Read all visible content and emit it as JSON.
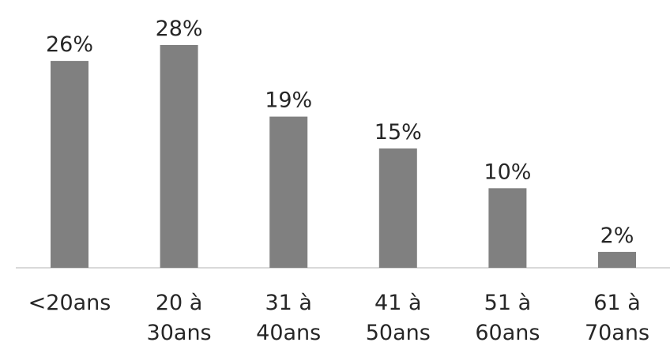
{
  "chart_data": {
    "type": "bar",
    "categories": [
      [
        "<20ans"
      ],
      [
        "20 à",
        "30ans"
      ],
      [
        "31 à",
        "40ans"
      ],
      [
        "41 à",
        "50ans"
      ],
      [
        "51 à",
        "60ans"
      ],
      [
        "61 à",
        "70ans"
      ]
    ],
    "values": [
      26,
      28,
      19,
      15,
      10,
      2
    ],
    "data_labels": [
      "26%",
      "28%",
      "19%",
      "15%",
      "10%",
      "2%"
    ],
    "value_unit": "%",
    "ylim": [
      0,
      28
    ],
    "grid": false,
    "legend": "none",
    "colors": {
      "bar": "#808080",
      "axis": "#d9d9d9",
      "text": "#262626"
    }
  }
}
